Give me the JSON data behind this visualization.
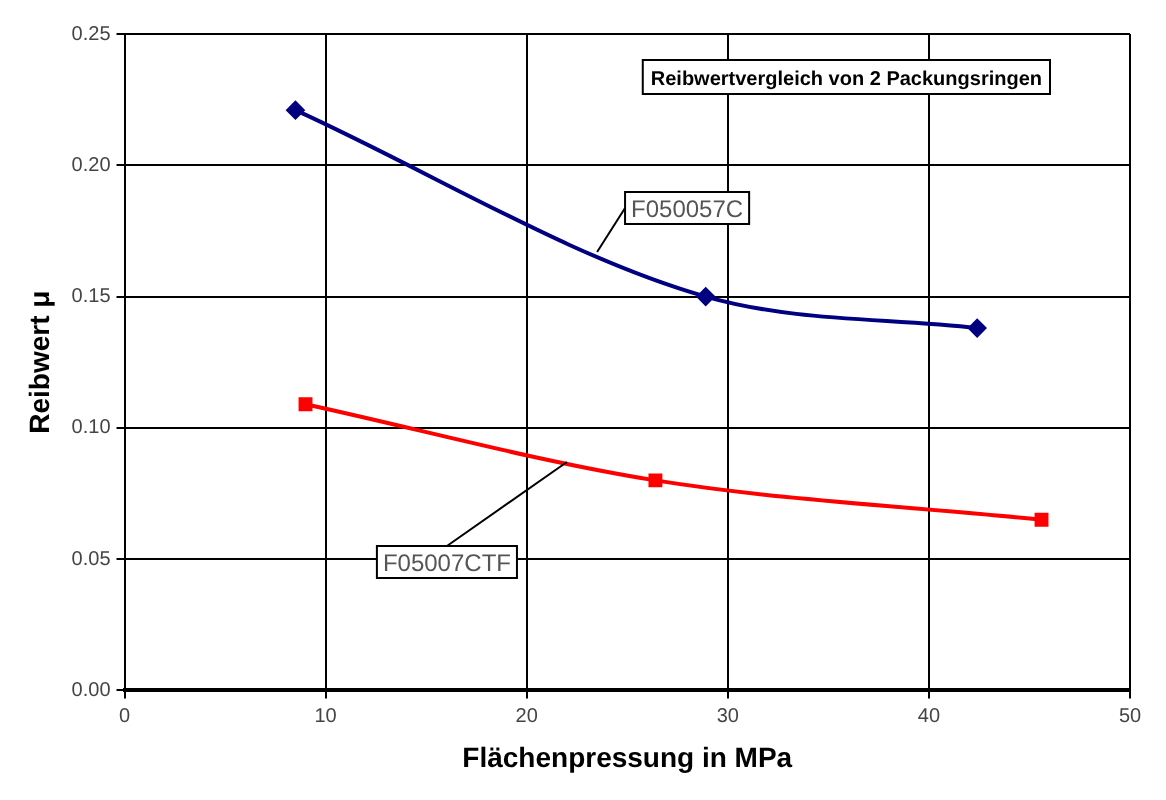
{
  "chart_data": {
    "type": "line",
    "title": "Reibwertvergleich von 2 Packungsringen",
    "xlabel": "Flächenpressung in MPa",
    "ylabel": "Reibwert μ",
    "series": [
      {
        "color": "#000080",
        "x": [
          8.5,
          28.9,
          42.4
        ],
        "values": [
          0.221,
          0.15,
          0.138
        ],
        "marker": "diamond"
      },
      {
        "color": "#ff0000",
        "x": [
          9.0,
          26.4,
          45.6
        ],
        "values": [
          0.109,
          0.08,
          0.065
        ],
        "marker": "square"
      }
    ],
    "annotations": [
      {
        "text": "F050057C",
        "x": 23.5,
        "y": 0.167
      },
      {
        "text": "F05007CTF",
        "x": 22,
        "y": 0.087
      }
    ],
    "xlim": [
      0,
      50
    ],
    "xticks": [
      0,
      10,
      20,
      30,
      40,
      50
    ],
    "ylim": [
      0,
      0.25
    ],
    "yticks": [
      {
        "value": 0,
        "label": "0.00"
      },
      {
        "value": 0.05,
        "label": "0.05"
      },
      {
        "value": 0.1,
        "label": "0.10"
      },
      {
        "value": 0.15,
        "label": "0.15"
      },
      {
        "value": 0.2,
        "label": "0.20"
      },
      {
        "value": 0.25,
        "label": "0.25"
      }
    ],
    "grid": true,
    "legend": false,
    "line_style": "solid"
  }
}
